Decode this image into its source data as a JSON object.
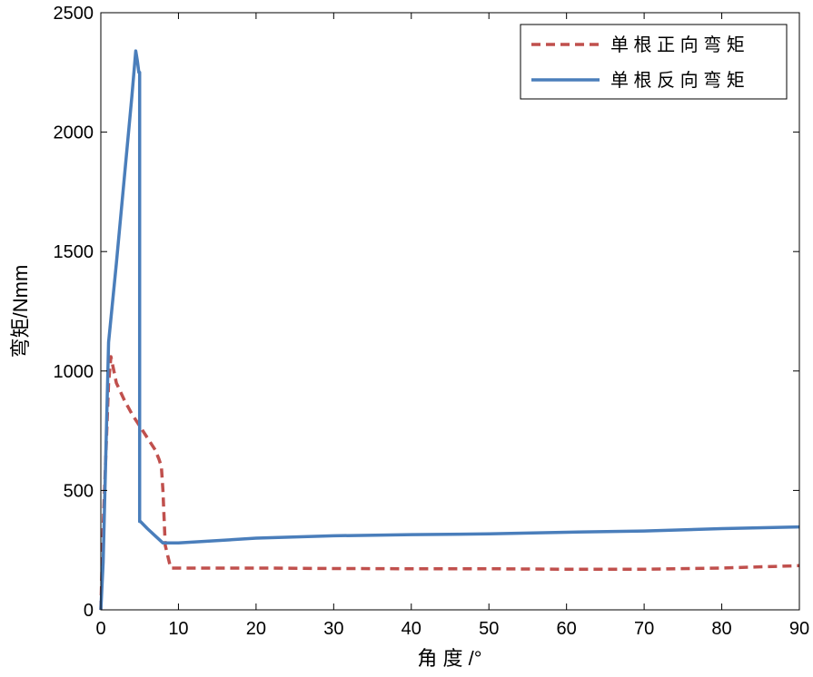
{
  "chart_data": {
    "type": "line",
    "title": "",
    "xlabel": "角 度 /°",
    "ylabel": "弯矩/Nmm",
    "xlim": [
      0,
      90
    ],
    "ylim": [
      0,
      2500
    ],
    "xticks": [
      0,
      10,
      20,
      30,
      40,
      50,
      60,
      70,
      80,
      90
    ],
    "yticks": [
      0,
      500,
      1000,
      1500,
      2000,
      2500
    ],
    "grid": false,
    "legend_position": "top-right",
    "series": [
      {
        "name": "单 根 正 向 弯 矩",
        "color": "#c0504d",
        "dash": "dashed",
        "x": [
          0,
          0.3,
          1,
          1.3,
          2,
          3,
          4,
          5,
          6,
          7,
          7.5,
          7.8,
          8,
          8.3,
          9,
          10,
          20,
          30,
          40,
          50,
          60,
          70,
          80,
          90
        ],
        "y": [
          0,
          350,
          950,
          1060,
          950,
          880,
          820,
          770,
          720,
          670,
          630,
          600,
          500,
          270,
          175,
          175,
          175,
          173,
          172,
          172,
          170,
          170,
          175,
          185
        ]
      },
      {
        "name": "单 根 反 向 弯 矩",
        "color": "#4a7ebb",
        "dash": "solid",
        "x": [
          0,
          0.3,
          1,
          2,
          3,
          4,
          4.5,
          4.7,
          4.9,
          5,
          5,
          5.1,
          6,
          7,
          8,
          10,
          20,
          30,
          40,
          50,
          60,
          70,
          80,
          90
        ],
        "y": [
          0,
          200,
          1120,
          1450,
          1800,
          2150,
          2340,
          2300,
          2250,
          2250,
          370,
          370,
          340,
          310,
          280,
          280,
          300,
          310,
          315,
          318,
          325,
          330,
          340,
          347
        ]
      }
    ]
  }
}
